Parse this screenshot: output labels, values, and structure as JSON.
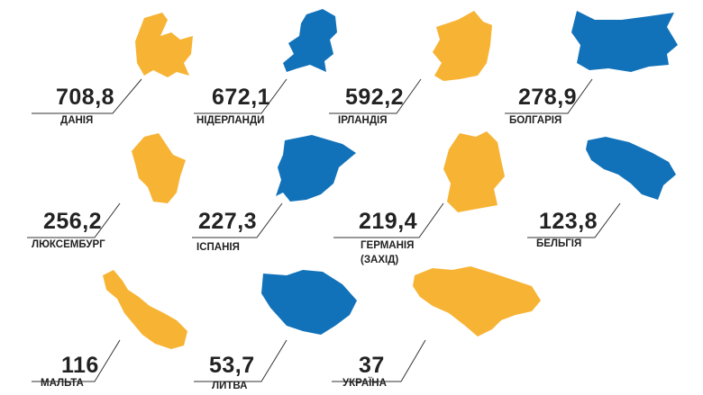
{
  "chart_data": {
    "type": "pictogram",
    "categories": [
      "ДАНІЯ",
      "НІДЕРЛАНДИ",
      "ІРЛАНДІЯ",
      "БОЛГАРІЯ",
      "ЛЮКСЕМБУРГ",
      "ІСПАНІЯ",
      "ГЕРМАНІЯ (ЗАХІД)",
      "БЕЛЬГІЯ",
      "МАЛЬТА",
      "ЛИТВА",
      "УКРАЇНА"
    ],
    "values": [
      708.8,
      672.1,
      592.2,
      278.9,
      256.2,
      227.3,
      219.4,
      123.8,
      116,
      53.7,
      37
    ],
    "value_labels": [
      "708,8",
      "672,1",
      "592,2",
      "278,9",
      "256,2",
      "227,3",
      "219,4",
      "123,8",
      "116",
      "53,7",
      "37"
    ],
    "colors": [
      "#f7b334",
      "#1172ba",
      "#f7b334",
      "#1172ba",
      "#f7b334",
      "#1172ba",
      "#f7b334",
      "#1172ba",
      "#f7b334",
      "#1172ba",
      "#f7b334"
    ]
  }
}
